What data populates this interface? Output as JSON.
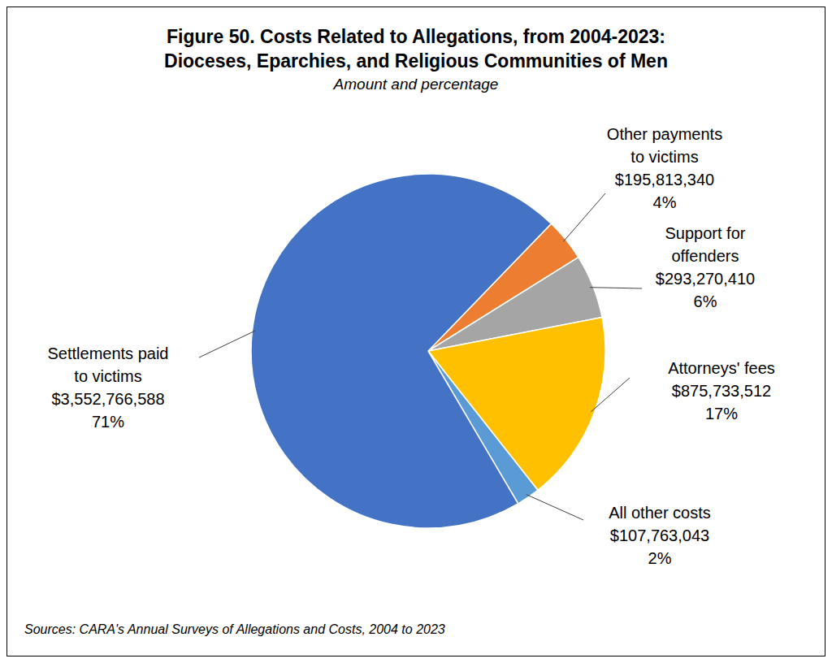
{
  "chart_data": {
    "type": "pie",
    "title": [
      "Figure 50. Costs Related to Allegations, from 2004-2023:",
      "Dioceses, Eparchies, and Religious Communities of Men"
    ],
    "subtitle": "Amount and percentage",
    "source": "Sources: CARA's Annual Surveys of Allegations and Costs, 2004 to 2023",
    "categories": [
      "Other payments to victims",
      "Support for offenders",
      "Attorneys' fees",
      "All other costs",
      "Settlements paid to victims"
    ],
    "values": [
      195813340,
      293270410,
      875733512,
      107763043,
      3552766588
    ],
    "value_labels": [
      "$195,813,340",
      "$293,270,410",
      "$875,733,512",
      "$107,763,043",
      "$3,552,766,588"
    ],
    "percent_labels": [
      "4%",
      "6%",
      "17%",
      "2%",
      "71%"
    ],
    "colors": [
      "#ED7D31",
      "#A5A5A5",
      "#FFC000",
      "#5B9BD5",
      "#4472C4"
    ],
    "data_labels": true
  }
}
